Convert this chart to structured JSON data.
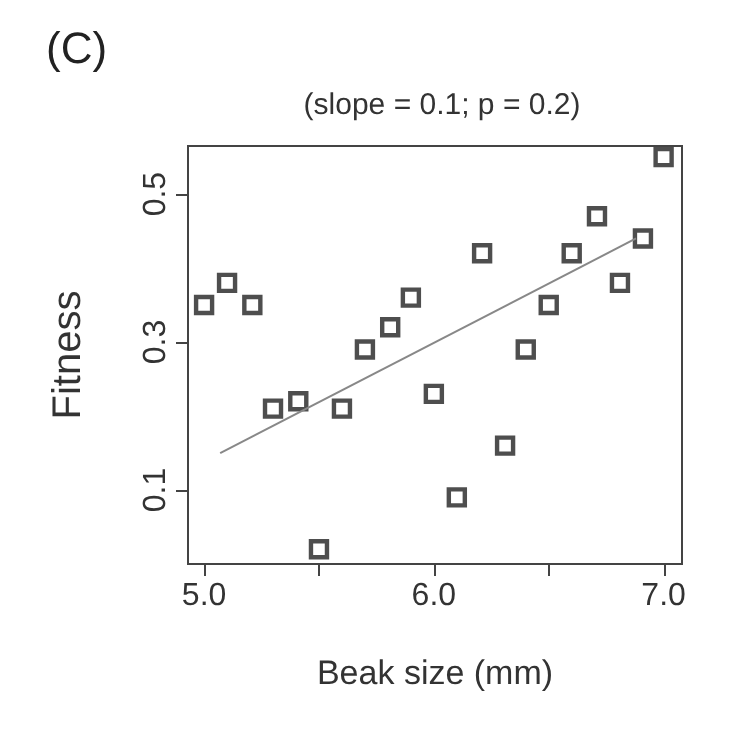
{
  "chart_data": {
    "type": "scatter",
    "title": "(C)",
    "subtitle": "(slope = 0.1; p = 0.2)",
    "xlabel": "Beak size (mm)",
    "ylabel": "Fitness",
    "xlim": [
      4.93,
      7.08
    ],
    "xticks": [
      {
        "value": 5,
        "label": "5.0"
      },
      {
        "value": 5.5,
        "label": null
      },
      {
        "value": 6,
        "label": "6.0"
      },
      {
        "value": 6.5,
        "label": null
      },
      {
        "value": 7,
        "label": "7.0"
      }
    ],
    "ylim": [
      0,
      0.565
    ],
    "yticks": [
      0.1,
      0.3,
      0.5
    ],
    "grid": false,
    "series": [
      {
        "marker": "square",
        "color": "#222222",
        "x": [
          5.0,
          5.1,
          5.21,
          5.3,
          5.41,
          5.5,
          5.6,
          5.7,
          5.81,
          5.9,
          6.0,
          6.1,
          6.21,
          6.31,
          6.4,
          6.5,
          6.6,
          6.71,
          6.81,
          6.91,
          7.0
        ],
        "values": [
          0.35,
          0.38,
          0.35,
          0.21,
          0.22,
          0.02,
          0.21,
          0.29,
          0.32,
          0.36,
          0.23,
          0.09,
          0.42,
          0.16,
          0.29,
          0.35,
          0.42,
          0.47,
          0.38,
          0.44,
          0.55
        ]
      },
      {
        "type": "line",
        "marker": "none",
        "color": "#888888",
        "line_style": "solid",
        "x": [
          5.07,
          6.88
        ],
        "values": [
          0.15,
          0.44
        ]
      }
    ]
  }
}
